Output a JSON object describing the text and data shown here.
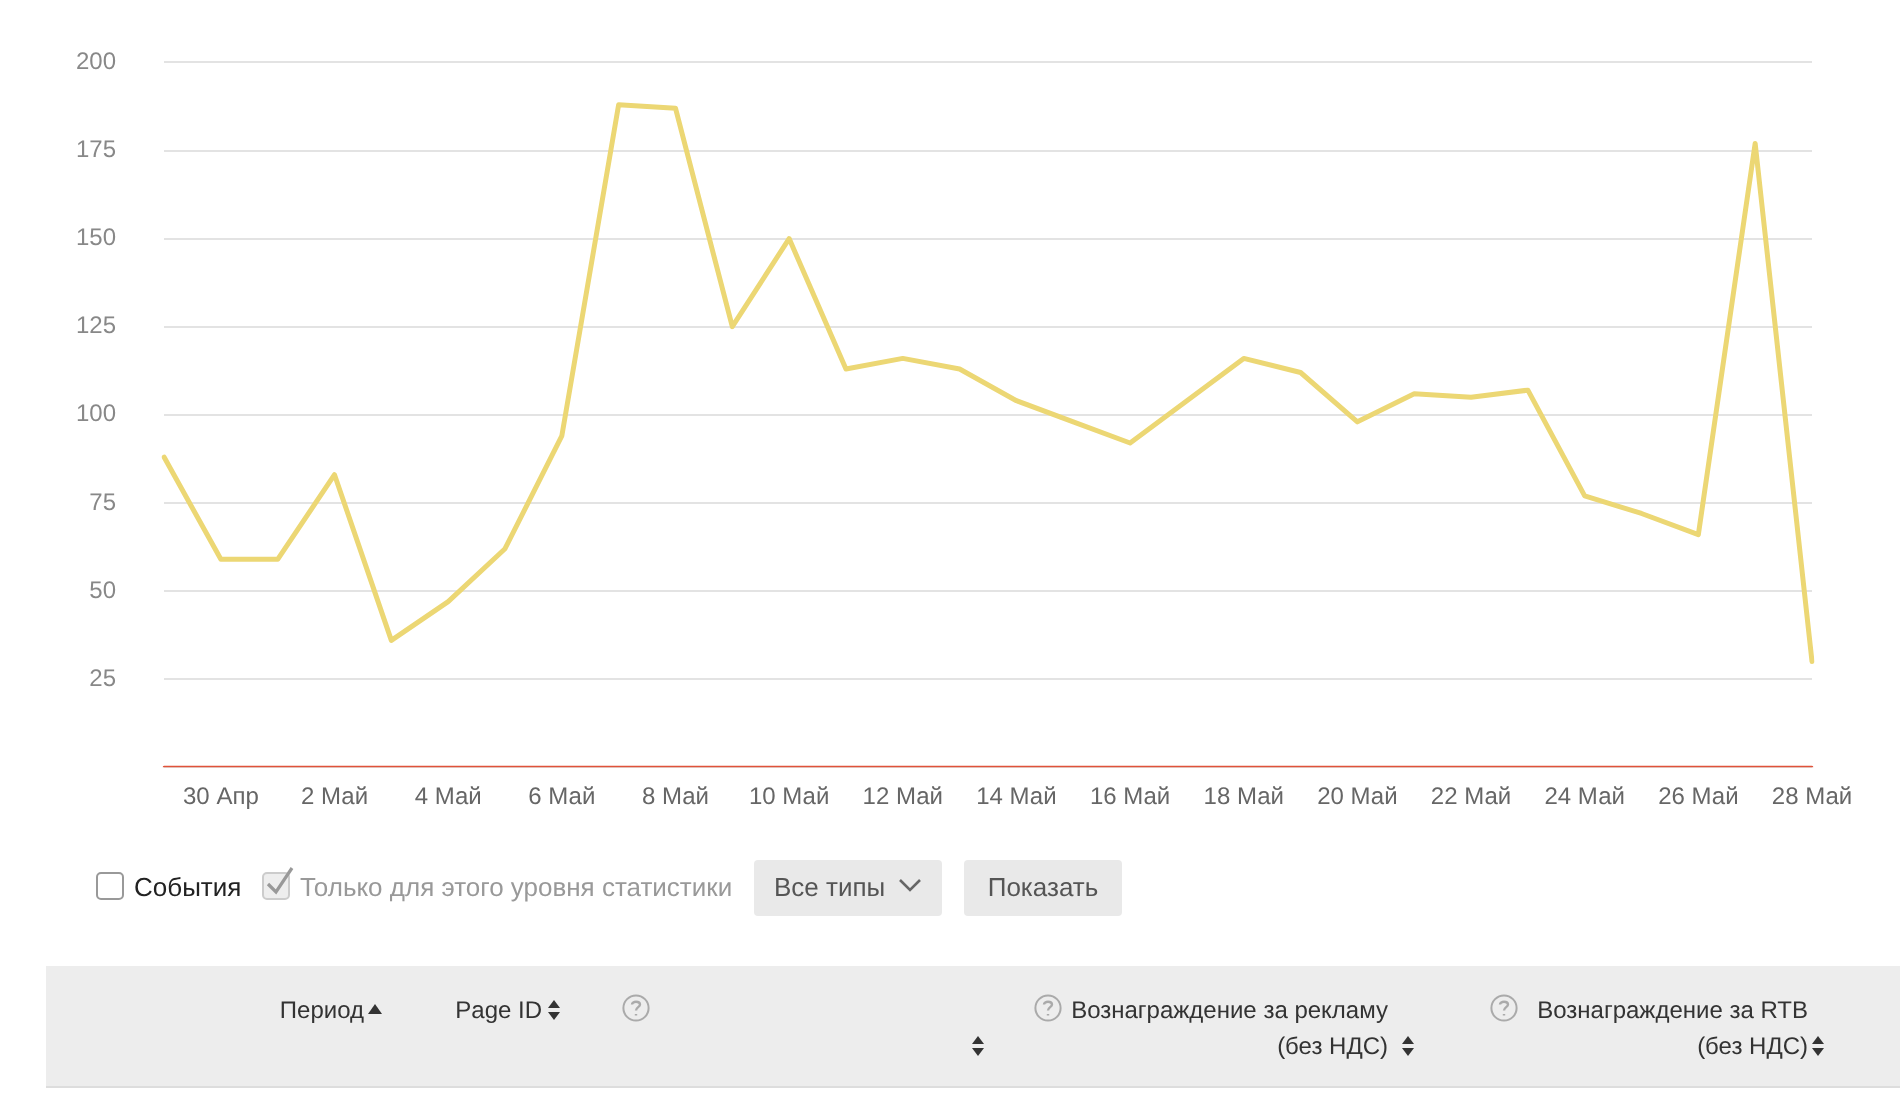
{
  "chart_data": {
    "type": "line",
    "categories": [
      null,
      "30 Апр",
      null,
      "2 Май",
      null,
      "4 Май",
      null,
      "6 Май",
      null,
      "8 Май",
      null,
      "10 Май",
      null,
      "12 Май",
      null,
      "14 Май",
      null,
      "16 Май",
      null,
      "18 Май",
      null,
      "20 Май",
      null,
      "22 Май",
      null,
      "24 Май",
      null,
      "26 Май",
      null,
      "28 Май"
    ],
    "series": [
      {
        "color": "#ecd774",
        "values": [
          88,
          59,
          59,
          83,
          36,
          47,
          62,
          94,
          188,
          187,
          125,
          150,
          113,
          116,
          113,
          104,
          98,
          92,
          104,
          116,
          112,
          98,
          106,
          105,
          107,
          77,
          72,
          66,
          177,
          30
        ]
      },
      {
        "color": "#e0533a",
        "values": [
          0,
          0,
          0,
          0,
          0,
          0,
          0,
          0,
          0,
          0,
          0,
          0,
          0,
          0,
          0,
          0,
          0,
          0,
          0,
          0,
          0,
          0,
          0,
          0,
          0,
          0,
          0,
          0,
          0,
          0
        ]
      }
    ],
    "ylim": [
      0,
      200
    ],
    "yticks": [
      {
        "value": 0,
        "label": null
      },
      25,
      50,
      75,
      100,
      125,
      150,
      175,
      200
    ],
    "grid": "y",
    "marker": "none",
    "line_style": "solid",
    "annotations": [
      "События",
      "Только для этого уровня статистики",
      "Все типы",
      "Показать",
      "Период",
      "Page ID",
      "Вознаграждение за рекламу (без НДС)",
      "Вознаграждение за RTB (без НДС)"
    ]
  }
}
